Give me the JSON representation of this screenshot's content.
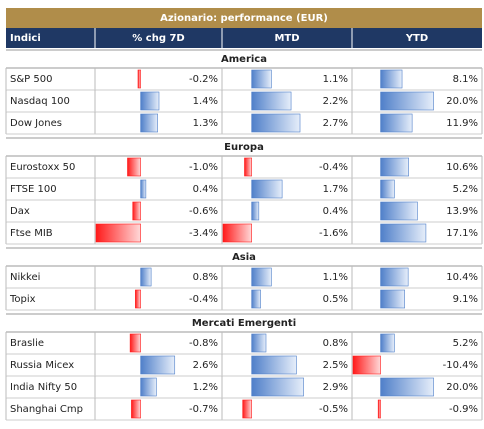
{
  "title": "Azionario: performance (EUR)",
  "columns": [
    "Indici",
    "% chg 7D",
    "MTD",
    "YTD"
  ],
  "groups": [
    {
      "name": "America",
      "rows": [
        {
          "label": "S&P 500",
          "values": [
            -0.2,
            1.1,
            8.1
          ],
          "value_labels": [
            "-0.2%",
            "1.1%",
            "8.1%"
          ]
        },
        {
          "label": "Nasdaq 100",
          "values": [
            1.4,
            2.2,
            20
          ],
          "value_labels": [
            "1.4%",
            "2.2%",
            "20.0%"
          ]
        },
        {
          "label": "Dow Jones",
          "values": [
            1.3,
            2.7,
            11.9
          ],
          "value_labels": [
            "1.3%",
            "2.7%",
            "11.9%"
          ]
        }
      ]
    },
    {
      "name": "Europa",
      "rows": [
        {
          "label": "Eurostoxx 50",
          "values": [
            -1.0,
            -0.4,
            10.6
          ],
          "value_labels": [
            "-1.0%",
            "-0.4%",
            "10.6%"
          ]
        },
        {
          "label": "FTSE 100",
          "values": [
            0.4,
            1.7,
            5.2
          ],
          "value_labels": [
            "0.4%",
            "1.7%",
            "5.2%"
          ]
        },
        {
          "label": "Dax",
          "values": [
            -0.6,
            0.4,
            13.9
          ],
          "value_labels": [
            "-0.6%",
            "0.4%",
            "13.9%"
          ]
        },
        {
          "label": "Ftse MIB",
          "values": [
            -3.4,
            -1.6,
            17.1
          ],
          "value_labels": [
            "-3.4%",
            "-1.6%",
            "17.1%"
          ]
        }
      ]
    },
    {
      "name": "Asia",
      "rows": [
        {
          "label": "Nikkei",
          "values": [
            0.8,
            1.1,
            10.4
          ],
          "value_labels": [
            "0.8%",
            "1.1%",
            "10.4%"
          ]
        },
        {
          "label": "Topix",
          "values": [
            -0.4,
            0.5,
            9.1
          ],
          "value_labels": [
            "-0.4%",
            "0.5%",
            "9.1%"
          ]
        }
      ]
    },
    {
      "name": "Mercati Emergenti",
      "rows": [
        {
          "label": "Braslie",
          "values": [
            -0.8,
            0.8,
            5.2
          ],
          "value_labels": [
            "-0.8%",
            "0.8%",
            "5.2%"
          ]
        },
        {
          "label": "Russia Micex",
          "values": [
            2.6,
            2.5,
            -10.4
          ],
          "value_labels": [
            "2.6%",
            "2.5%",
            "-10.4%"
          ]
        },
        {
          "label": "India Nifty 50",
          "values": [
            1.2,
            2.9,
            20
          ],
          "value_labels": [
            "1.2%",
            "2.9%",
            "20.0%"
          ]
        },
        {
          "label": "Shanghai Cmp",
          "values": [
            -0.7,
            -0.5,
            -0.9
          ],
          "value_labels": [
            "-0.7%",
            "-0.5%",
            "-0.9%"
          ]
        }
      ]
    }
  ]
}
